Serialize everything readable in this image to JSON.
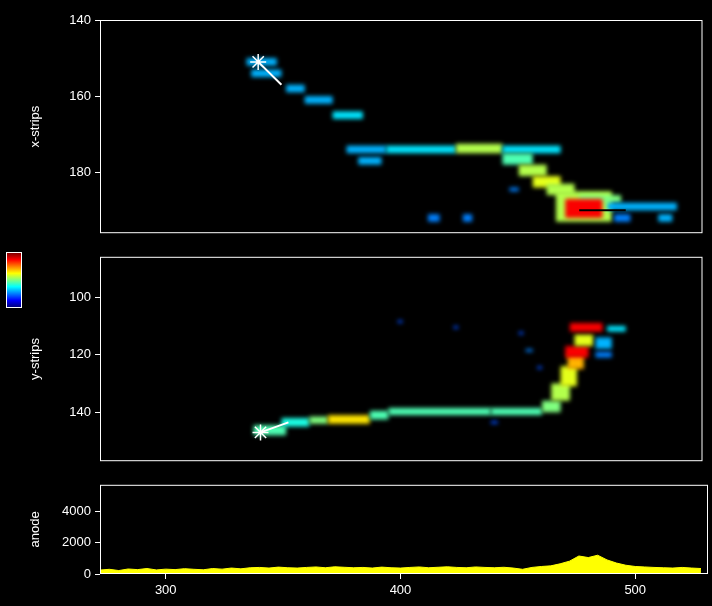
{
  "colorbar": {
    "range": [
      0,
      1
    ]
  },
  "chart_data": [
    {
      "type": "heatmap",
      "ylabel": "x-strips",
      "xlim": [
        272,
        531
      ],
      "xticks": [
        300,
        400,
        500
      ],
      "ylim": [
        196,
        140
      ],
      "yticks": [
        140,
        160,
        180
      ],
      "tick_labels": "y",
      "grid": false,
      "cells": [
        {
          "x": [
            335,
            348
          ],
          "y": [
            150,
            152
          ],
          "v": 0.3
        },
        {
          "x": [
            337,
            350
          ],
          "y": [
            153,
            155
          ],
          "v": 0.3
        },
        {
          "x": [
            352,
            360
          ],
          "y": [
            157,
            159
          ],
          "v": 0.3
        },
        {
          "x": [
            360,
            372
          ],
          "y": [
            160,
            162
          ],
          "v": 0.3
        },
        {
          "x": [
            372,
            385
          ],
          "y": [
            164,
            166
          ],
          "v": 0.35
        },
        {
          "x": [
            378,
            395
          ],
          "y": [
            173,
            175
          ],
          "v": 0.3
        },
        {
          "x": [
            395,
            425
          ],
          "y": [
            173,
            175
          ],
          "v": 0.35
        },
        {
          "x": [
            425,
            445
          ],
          "y": [
            172.5,
            175
          ],
          "v": 0.55
        },
        {
          "x": [
            445,
            470
          ],
          "y": [
            173,
            175
          ],
          "v": 0.35
        },
        {
          "x": [
            383,
            393
          ],
          "y": [
            176,
            178
          ],
          "v": 0.3
        },
        {
          "x": [
            445,
            458
          ],
          "y": [
            175,
            178
          ],
          "v": 0.45
        },
        {
          "x": [
            452,
            464
          ],
          "y": [
            178,
            181
          ],
          "v": 0.55
        },
        {
          "x": [
            458,
            470
          ],
          "y": [
            181,
            184
          ],
          "v": 0.6
        },
        {
          "x": [
            464,
            476
          ],
          "y": [
            183,
            186
          ],
          "v": 0.55
        },
        {
          "x": [
            468,
            492
          ],
          "y": [
            185,
            193
          ],
          "v": 0.55
        },
        {
          "x": [
            478,
            496
          ],
          "y": [
            186,
            188
          ],
          "v": 0.5
        },
        {
          "x": [
            472,
            488
          ],
          "y": [
            187,
            192
          ],
          "v": 0.88
        },
        {
          "x": [
            490,
            520
          ],
          "y": [
            188,
            190
          ],
          "v": 0.3
        },
        {
          "x": [
            413,
            418
          ],
          "y": [
            191,
            193
          ],
          "v": 0.25
        },
        {
          "x": [
            428,
            432
          ],
          "y": [
            191,
            193
          ],
          "v": 0.25
        },
        {
          "x": [
            493,
            500
          ],
          "y": [
            191,
            193
          ],
          "v": 0.25
        },
        {
          "x": [
            512,
            518
          ],
          "y": [
            191,
            193
          ],
          "v": 0.3
        },
        {
          "x": [
            448,
            452
          ],
          "y": [
            184,
            185
          ],
          "v": 0.25
        }
      ],
      "lines": [
        {
          "x": [
            340,
            350
          ],
          "y": [
            151,
            157
          ],
          "color": "#ffffff"
        },
        {
          "x": [
            478,
            498
          ],
          "y": [
            190,
            190
          ],
          "color": "#000000"
        }
      ],
      "markers": [
        {
          "x": 340,
          "y": 151,
          "marker": "star",
          "color": "#ffffff"
        }
      ]
    },
    {
      "type": "heatmap",
      "ylabel": "y-strips",
      "xlim": [
        272,
        531
      ],
      "xticks": [
        300,
        400,
        500
      ],
      "ylim": [
        157,
        86
      ],
      "yticks": [
        100,
        120,
        140
      ],
      "tick_labels": "y",
      "grid": false,
      "cells": [
        {
          "x": [
            338,
            352
          ],
          "y": [
            144.5,
            148
          ],
          "v": 0.45
        },
        {
          "x": [
            350,
            362
          ],
          "y": [
            142,
            145
          ],
          "v": 0.4
        },
        {
          "x": [
            362,
            370
          ],
          "y": [
            141.5,
            144
          ],
          "v": 0.5
        },
        {
          "x": [
            370,
            388
          ],
          "y": [
            141,
            144
          ],
          "v": 0.65
        },
        {
          "x": [
            388,
            396
          ],
          "y": [
            139.5,
            142.5
          ],
          "v": 0.45
        },
        {
          "x": [
            396,
            440
          ],
          "y": [
            138.5,
            141
          ],
          "v": 0.45
        },
        {
          "x": [
            440,
            462
          ],
          "y": [
            138.5,
            141
          ],
          "v": 0.45
        },
        {
          "x": [
            462,
            470
          ],
          "y": [
            136,
            140
          ],
          "v": 0.5
        },
        {
          "x": [
            466,
            474
          ],
          "y": [
            130,
            136
          ],
          "v": 0.55
        },
        {
          "x": [
            470,
            477
          ],
          "y": [
            124,
            131
          ],
          "v": 0.6
        },
        {
          "x": [
            473,
            480
          ],
          "y": [
            120,
            125
          ],
          "v": 0.7
        },
        {
          "x": [
            472,
            482
          ],
          "y": [
            117,
            121
          ],
          "v": 0.88
        },
        {
          "x": [
            476,
            484
          ],
          "y": [
            113,
            117
          ],
          "v": 0.6
        },
        {
          "x": [
            474,
            488
          ],
          "y": [
            109,
            112
          ],
          "v": 0.88
        },
        {
          "x": [
            490,
            498
          ],
          "y": [
            110,
            112
          ],
          "v": 0.35
        },
        {
          "x": [
            485,
            492
          ],
          "y": [
            114,
            118
          ],
          "v": 0.3
        },
        {
          "x": [
            485,
            492
          ],
          "y": [
            119,
            121
          ],
          "v": 0.25
        },
        {
          "x": [
            400,
            402
          ],
          "y": [
            108,
            109
          ],
          "v": 0.2
        },
        {
          "x": [
            424,
            426
          ],
          "y": [
            110,
            111
          ],
          "v": 0.2
        },
        {
          "x": [
            452,
            454
          ],
          "y": [
            112,
            113
          ],
          "v": 0.2
        },
        {
          "x": [
            460,
            462
          ],
          "y": [
            124,
            125
          ],
          "v": 0.2
        },
        {
          "x": [
            440,
            443
          ],
          "y": [
            143,
            144
          ],
          "v": 0.2
        },
        {
          "x": [
            455,
            458
          ],
          "y": [
            118,
            119
          ],
          "v": 0.25
        }
      ],
      "lines": [
        {
          "x": [
            341,
            353
          ],
          "y": [
            147,
            143.5
          ],
          "color": "#ffffff"
        }
      ],
      "markers": [
        {
          "x": 341,
          "y": 147,
          "marker": "star",
          "color": "#ffffff"
        }
      ]
    },
    {
      "type": "area",
      "ylabel": "anode",
      "xlim": [
        272,
        531
      ],
      "xticks": [
        300,
        400,
        500
      ],
      "ylim": [
        0,
        5700
      ],
      "yticks": [
        0,
        2000,
        4000
      ],
      "grid": false,
      "color": "#ffff00",
      "x": [
        272,
        276,
        280,
        284,
        288,
        292,
        296,
        300,
        304,
        308,
        312,
        316,
        320,
        324,
        328,
        332,
        336,
        340,
        344,
        348,
        352,
        356,
        360,
        364,
        368,
        372,
        376,
        380,
        384,
        388,
        392,
        396,
        400,
        404,
        408,
        412,
        416,
        420,
        424,
        428,
        432,
        436,
        440,
        444,
        448,
        452,
        456,
        460,
        464,
        468,
        472,
        476,
        480,
        484,
        488,
        492,
        496,
        500,
        504,
        508,
        512,
        516,
        520,
        524,
        528
      ],
      "values": [
        250,
        300,
        220,
        320,
        280,
        350,
        260,
        310,
        280,
        340,
        300,
        270,
        350,
        310,
        380,
        330,
        400,
        420,
        380,
        440,
        400,
        380,
        420,
        450,
        400,
        460,
        430,
        400,
        420,
        380,
        440,
        400,
        380,
        420,
        450,
        400,
        430,
        460,
        420,
        400,
        450,
        420,
        400,
        430,
        380,
        300,
        420,
        480,
        520,
        650,
        820,
        1150,
        1050,
        1200,
        900,
        700,
        560,
        480,
        450,
        420,
        400,
        380,
        420,
        380,
        350
      ]
    }
  ]
}
